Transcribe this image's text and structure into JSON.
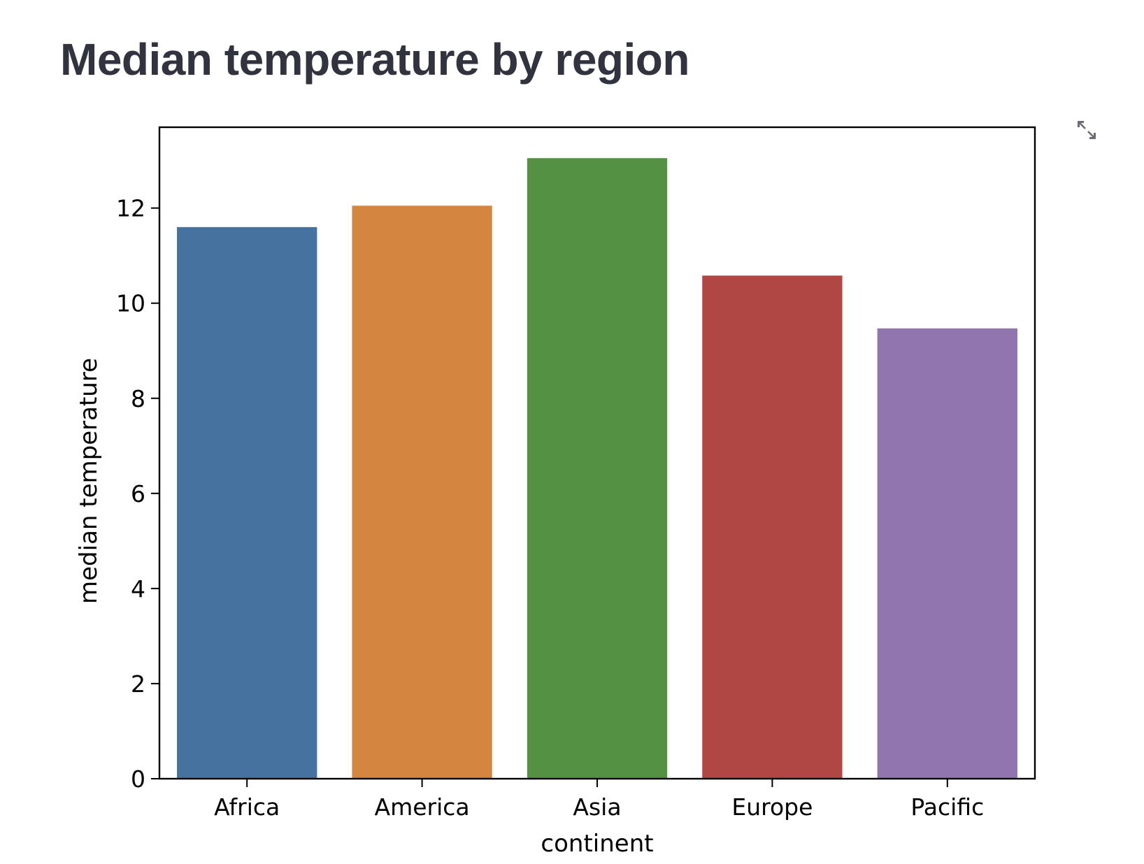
{
  "page": {
    "title": "Median temperature by region"
  },
  "toolbar": {
    "fullscreen_icon": "expand-arrows-icon"
  },
  "chart_data": {
    "type": "bar",
    "categories": [
      "Africa",
      "America",
      "Asia",
      "Europe",
      "Pacific"
    ],
    "values": [
      11.6,
      12.05,
      13.05,
      10.58,
      9.47
    ],
    "colors": [
      "#4672a0",
      "#d48540",
      "#549143",
      "#b14744",
      "#9075ae"
    ],
    "xlabel": "continent",
    "ylabel": "median temperature",
    "ylim": [
      0,
      13.7
    ],
    "yticks": [
      0,
      2,
      4,
      6,
      8,
      10,
      12
    ],
    "grid": false,
    "legend": false
  }
}
